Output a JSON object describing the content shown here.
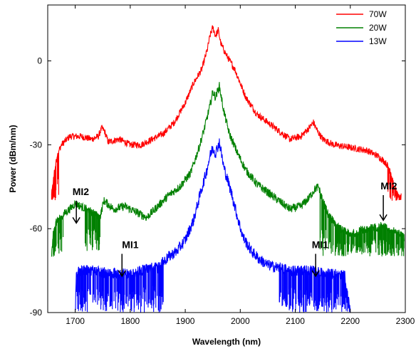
{
  "chart_data": {
    "type": "line",
    "title": "",
    "xlabel": "Wavelength (nm)",
    "ylabel": "Power (dBm/nm)",
    "xlim": [
      1650,
      2300
    ],
    "ylim": [
      -90,
      20
    ],
    "xticks": [
      1700,
      1800,
      1900,
      2000,
      2100,
      2200,
      2300
    ],
    "yticks": [
      0,
      -30,
      -60,
      -90
    ],
    "xtick_labels": [
      "1700",
      "1800",
      "1900",
      "2000",
      "2100",
      "2200",
      "2300"
    ],
    "ytick_labels": [
      "0",
      "-30",
      "-60",
      "-90"
    ],
    "grid": false,
    "legend_position": "top-right",
    "series": [
      {
        "name": "70W",
        "color": "#ff0000",
        "noise": 1.2,
        "x": [
          1657,
          1662,
          1668,
          1675,
          1690,
          1710,
          1730,
          1742,
          1748,
          1753,
          1760,
          1780,
          1800,
          1820,
          1840,
          1860,
          1880,
          1900,
          1915,
          1930,
          1940,
          1945,
          1950,
          1955,
          1960,
          1965,
          1975,
          1990,
          2010,
          2030,
          2050,
          2070,
          2090,
          2110,
          2125,
          2133,
          2140,
          2150,
          2170,
          2200,
          2230,
          2250,
          2262,
          2270,
          2275,
          2280,
          2285,
          2290,
          2293
        ],
        "y": [
          -48,
          -40,
          -33,
          -30,
          -27,
          -27,
          -28,
          -27,
          -24,
          -25,
          -29,
          -28,
          -30,
          -30,
          -28,
          -26,
          -22,
          -15,
          -8,
          -3,
          4,
          9,
          12,
          9,
          11,
          6,
          2,
          -3,
          -13,
          -19,
          -22,
          -25,
          -28,
          -27,
          -24,
          -22,
          -25,
          -28,
          -30,
          -31,
          -32,
          -34,
          -36,
          -38,
          -42,
          -45,
          -47,
          -49,
          -48
        ]
      },
      {
        "name": "20W",
        "color": "#008000",
        "noise": 1.5,
        "x": [
          1657,
          1660,
          1665,
          1672,
          1678,
          1690,
          1700,
          1710,
          1730,
          1745,
          1752,
          1758,
          1770,
          1790,
          1810,
          1830,
          1850,
          1870,
          1890,
          1910,
          1925,
          1935,
          1945,
          1950,
          1955,
          1962,
          1970,
          1980,
          1995,
          2010,
          2030,
          2050,
          2070,
          2090,
          2110,
          2125,
          2135,
          2142,
          2150,
          2160,
          2180,
          2200,
          2230,
          2260,
          2290,
          2298
        ],
        "y": [
          -70,
          -62,
          -58,
          -56,
          -55,
          -53,
          -51,
          -52,
          -54,
          -56,
          -50,
          -51,
          -53,
          -52,
          -54,
          -56,
          -52,
          -48,
          -45,
          -40,
          -31,
          -24,
          -16,
          -11,
          -13,
          -9,
          -18,
          -26,
          -33,
          -39,
          -44,
          -47,
          -50,
          -53,
          -52,
          -49,
          -46,
          -45,
          -50,
          -55,
          -60,
          -62,
          -60,
          -59,
          -62,
          -63
        ]
      },
      {
        "name": "13W",
        "color": "#0000ff",
        "noise": 2.0,
        "x": [
          1700,
          1702,
          1710,
          1730,
          1760,
          1790,
          1810,
          1830,
          1850,
          1870,
          1885,
          1900,
          1915,
          1928,
          1938,
          1945,
          1950,
          1955,
          1962,
          1970,
          1985,
          1995,
          2005,
          2020,
          2035,
          2050,
          2070,
          2090,
          2110,
          2130,
          2150,
          2170,
          2190,
          2200
        ],
        "y": [
          -90,
          -76,
          -75,
          -75,
          -76,
          -76,
          -76,
          -74,
          -74,
          -70,
          -68,
          -64,
          -57,
          -47,
          -40,
          -34,
          -31,
          -33,
          -29,
          -38,
          -48,
          -56,
          -63,
          -68,
          -71,
          -73,
          -74,
          -75,
          -75,
          -75,
          -76,
          -76,
          -77,
          -90
        ]
      }
    ],
    "dropouts": [
      {
        "series": "70W",
        "x_range": [
          1657,
          1670
        ],
        "to_y": -50
      },
      {
        "series": "70W",
        "x_range": [
          2268,
          2294
        ],
        "to_y": -50
      },
      {
        "series": "20W",
        "x_range": [
          1657,
          1678
        ],
        "to_y": -70
      },
      {
        "series": "20W",
        "x_range": [
          1718,
          1745
        ],
        "to_y": -68
      },
      {
        "series": "20W",
        "x_range": [
          2145,
          2298
        ],
        "to_y": -70
      },
      {
        "series": "13W",
        "x_range": [
          1700,
          1860
        ],
        "to_y": -90
      },
      {
        "series": "13W",
        "x_range": [
          2070,
          2200
        ],
        "to_y": -90
      }
    ],
    "annotations": [
      {
        "text": "MI2",
        "text_x": 1695,
        "text_y": -48,
        "arrow_from": [
          1702,
          -50
        ],
        "arrow_to": [
          1702,
          -58
        ]
      },
      {
        "text": "MI1",
        "text_x": 1785,
        "text_y": -67,
        "arrow_from": [
          1785,
          -69
        ],
        "arrow_to": [
          1785,
          -77
        ]
      },
      {
        "text": "MI1",
        "text_x": 2130,
        "text_y": -67,
        "arrow_from": [
          2137,
          -69
        ],
        "arrow_to": [
          2137,
          -77
        ]
      },
      {
        "text": "MI2",
        "text_x": 2255,
        "text_y": -46,
        "arrow_from": [
          2260,
          -48
        ],
        "arrow_to": [
          2260,
          -57
        ]
      }
    ]
  }
}
